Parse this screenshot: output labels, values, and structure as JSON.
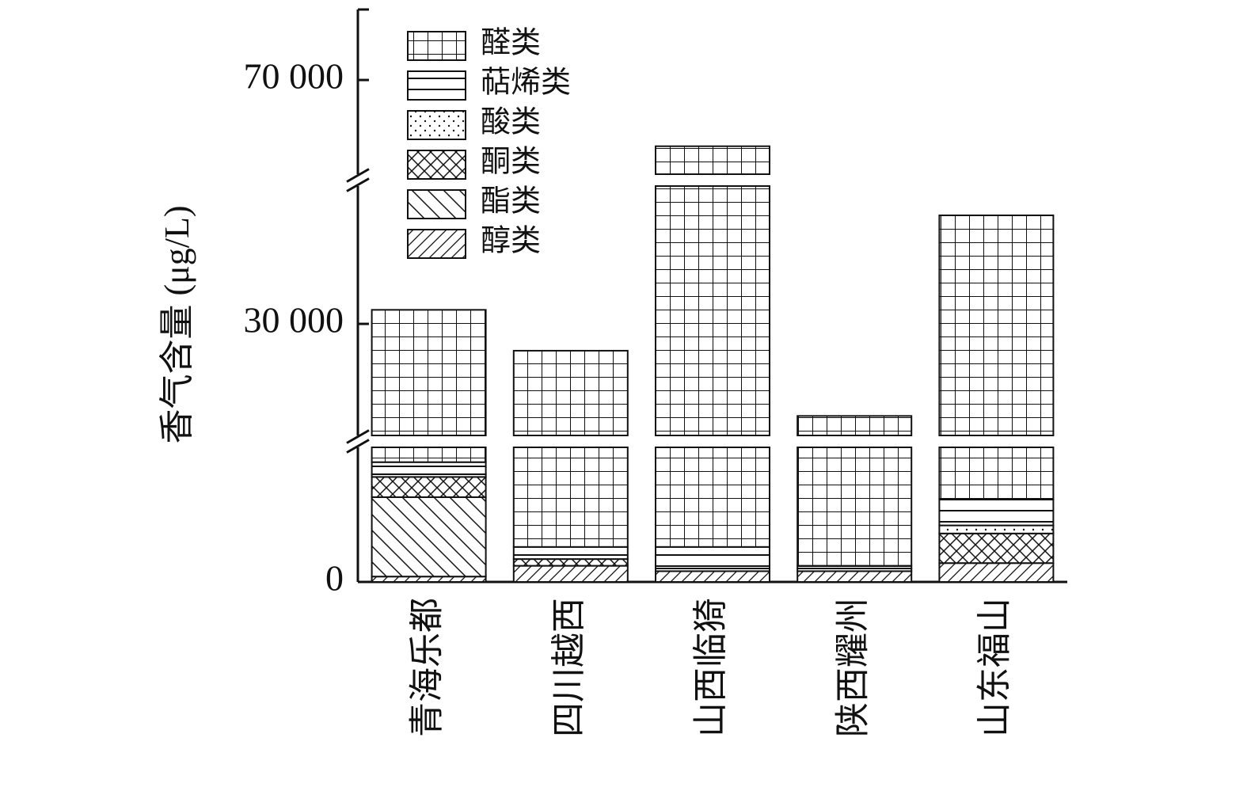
{
  "chart_data": {
    "type": "stacked_bar",
    "y_label": "香气含量 (μg/L)",
    "categories": [
      "青海乐都",
      "四川越西",
      "山西临猗",
      "陕西耀州",
      "山东福山"
    ],
    "series": [
      {
        "name": "醇类",
        "pattern": "slash",
        "color": "#111111",
        "values": [
          400,
          1200,
          800,
          800,
          1400
        ]
      },
      {
        "name": "酯类",
        "pattern": "backslash",
        "color": "#111111",
        "values": [
          5900,
          0,
          0,
          0,
          0
        ]
      },
      {
        "name": "酮类",
        "pattern": "crosshatch",
        "color": "#111111",
        "values": [
          1500,
          500,
          0,
          0,
          2200
        ]
      },
      {
        "name": "酸类",
        "pattern": "dots",
        "color": "#111111",
        "values": [
          200,
          0,
          200,
          200,
          600
        ]
      },
      {
        "name": "萜烯类",
        "pattern": "hlines",
        "color": "#111111",
        "values": [
          900,
          900,
          1600,
          200,
          1950
        ]
      },
      {
        "name": "醛类",
        "pattern": "grid",
        "color": "#111111",
        "values": [
          23400,
          23000,
          56500,
          13700,
          41650
        ]
      }
    ],
    "axis_segments": [
      {
        "ylim": [
          0,
          10000
        ]
      },
      {
        "ylim": [
          11700,
          52600
        ]
      },
      {
        "ylim": [
          54500,
          81600
        ]
      }
    ],
    "ylim": [
      0,
      81600
    ],
    "yticks": [
      0,
      {
        "value": 30000,
        "label": "30 000"
      },
      {
        "value": 70000,
        "label": "70 000"
      }
    ],
    "legend": "upper-left"
  }
}
